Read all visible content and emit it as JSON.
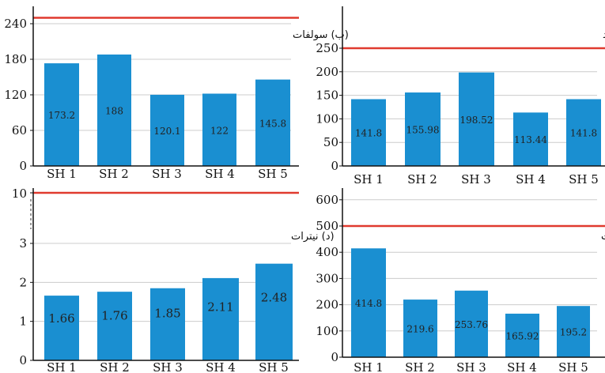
{
  "chart_data": [
    {
      "type": "bar",
      "title": "(ب) سولفات",
      "categories": [
        "SH1",
        "SH2",
        "SH3",
        "SH4",
        "SH5"
      ],
      "values": [
        173.2,
        188,
        120.1,
        122,
        145.8
      ],
      "data_labels": [
        "173.2",
        "188",
        "120.1",
        "122",
        "145.8"
      ],
      "yticks": [
        0,
        60,
        120,
        180,
        240
      ],
      "ylim": [
        0,
        252
      ],
      "limit_line": 250,
      "bar_color": "#1a8fd1",
      "limit_color": "#e03a2f"
    },
    {
      "type": "bar",
      "title": "(الف) کلرید",
      "categories": [
        "SH1",
        "SH2",
        "SH3",
        "SH4",
        "SH5"
      ],
      "values": [
        141.8,
        155.98,
        198.52,
        113.44,
        141.8
      ],
      "data_labels": [
        "141.8",
        "155.98",
        "198.52",
        "113.44",
        "141.8"
      ],
      "yticks": [
        0,
        50,
        100,
        150,
        200,
        250
      ],
      "ylim": [
        0,
        265
      ],
      "limit_line": 250,
      "bar_color": "#1a8fd1",
      "limit_color": "#e03a2f"
    },
    {
      "type": "bar",
      "title": "(د) نیترات",
      "categories": [
        "SH1",
        "SH2",
        "SH3",
        "SH4",
        "SH5"
      ],
      "values": [
        1.66,
        1.76,
        1.85,
        2.11,
        2.48
      ],
      "data_labels": [
        "1.66",
        "1.76",
        "1.85",
        "2.11",
        "2.48"
      ],
      "yticks": [
        0,
        1,
        2,
        3
      ],
      "axis_break_top_label": "10",
      "limit_line": 10,
      "bar_color": "#1a8fd1",
      "limit_color": "#e03a2f"
    },
    {
      "type": "bar",
      "title": "(ج) بیکربنات",
      "categories": [
        "SH1",
        "SH2",
        "SH3",
        "SH4",
        "SH5"
      ],
      "values": [
        414.8,
        219.6,
        253.76,
        165.92,
        195.2
      ],
      "data_labels": [
        "414.8",
        "219.6",
        "253.76",
        "165.92",
        "195.2"
      ],
      "yticks": [
        0,
        100,
        200,
        300,
        400,
        500,
        600
      ],
      "ylim": [
        0,
        630
      ],
      "limit_line": 500,
      "bar_color": "#1a8fd1",
      "limit_color": "#e03a2f"
    }
  ]
}
